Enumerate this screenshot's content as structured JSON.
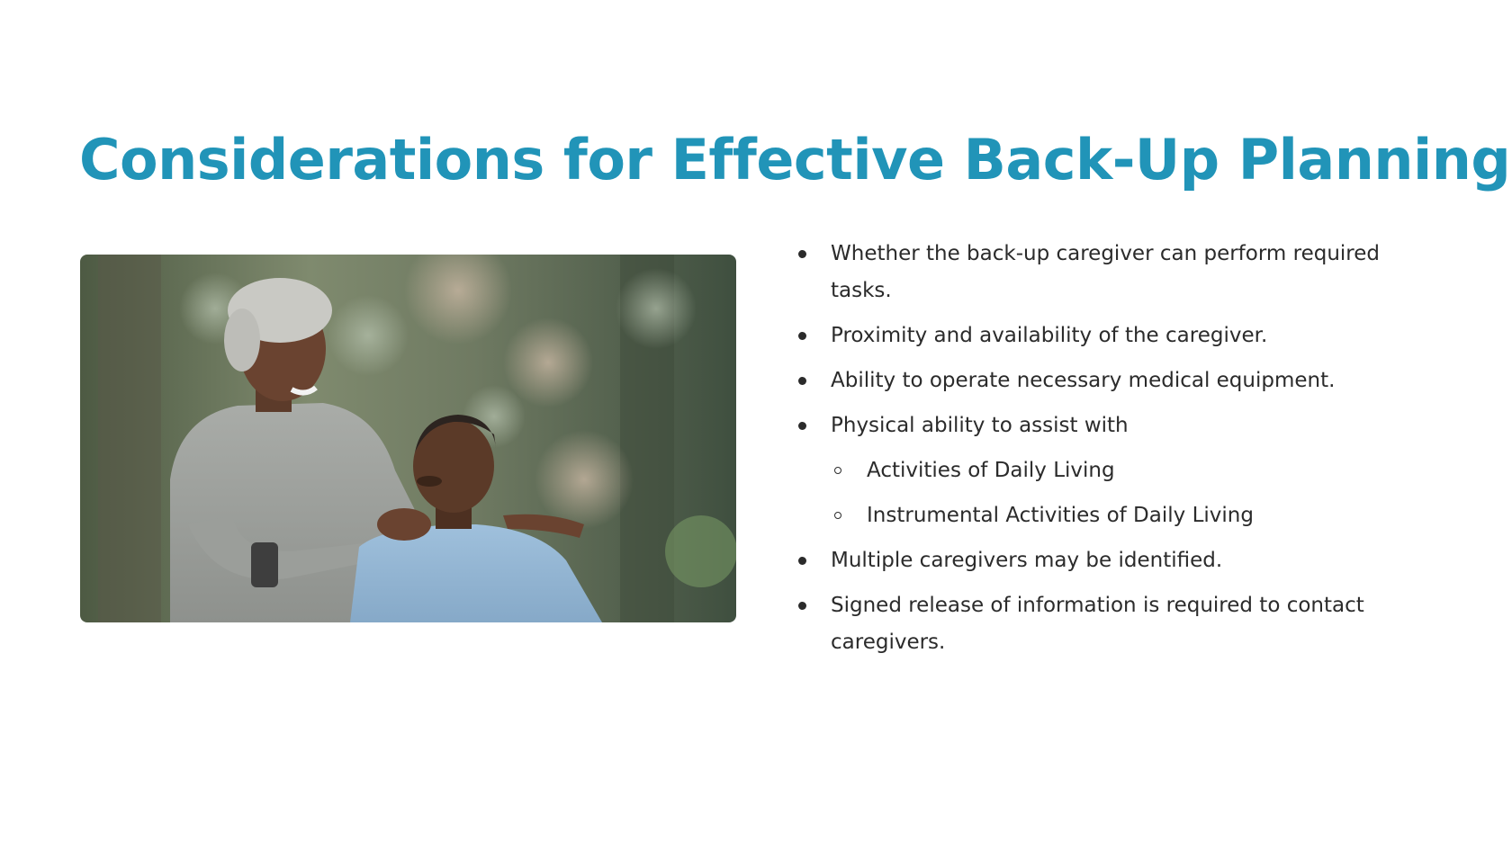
{
  "slide": {
    "title": "Considerations for Effective Back-Up Planning",
    "title_color": "#2194b8",
    "photo_icon": "caregiver-photo",
    "bullets": [
      {
        "text": "Whether the back-up caregiver can perform required tasks.",
        "level": 1
      },
      {
        "text": "Proximity and availability of the caregiver.",
        "level": 1
      },
      {
        "text": "Ability to operate necessary medical equipment.",
        "level": 1
      },
      {
        "text": "Physical ability to assist with",
        "level": 1
      },
      {
        "text": "Activities of Daily Living",
        "level": 2
      },
      {
        "text": "Instrumental Activities of Daily Living",
        "level": 2
      },
      {
        "text": "Multiple caregivers may be identified.",
        "level": 1
      },
      {
        "text": "Signed release of information is required to contact caregivers.",
        "level": 1
      }
    ]
  }
}
